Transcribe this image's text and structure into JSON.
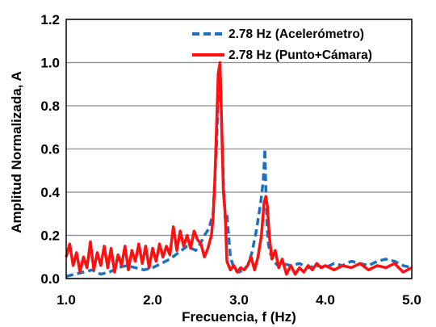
{
  "chart_data": {
    "type": "line",
    "xlabel": "Frecuencia, f (Hz)",
    "ylabel": "Amplitud Normalizada, A",
    "xlim": [
      1.0,
      5.0
    ],
    "ylim": [
      0.0,
      1.2
    ],
    "xticks": [
      "1.0",
      "2.0",
      "3.0",
      "4.0",
      "5.0"
    ],
    "yticks": [
      "0.0",
      "0.2",
      "0.4",
      "0.6",
      "0.8",
      "1.0",
      "1.2"
    ],
    "grid": "horizontal",
    "legend_position": "top-right",
    "series": [
      {
        "name": "2.78 Hz (Acelerómetro)",
        "color": "#1f6fc0",
        "style": "dashed",
        "x": [
          1.0,
          1.1,
          1.2,
          1.3,
          1.4,
          1.5,
          1.6,
          1.7,
          1.8,
          1.9,
          2.0,
          2.1,
          2.2,
          2.3,
          2.4,
          2.5,
          2.55,
          2.6,
          2.65,
          2.7,
          2.72,
          2.74,
          2.76,
          2.78,
          2.8,
          2.82,
          2.84,
          2.86,
          2.88,
          2.9,
          2.95,
          3.0,
          3.05,
          3.1,
          3.15,
          3.2,
          3.25,
          3.28,
          3.3,
          3.31,
          3.32,
          3.33,
          3.34,
          3.36,
          3.38,
          3.4,
          3.45,
          3.5,
          3.6,
          3.7,
          3.8,
          3.9,
          4.0,
          4.1,
          4.2,
          4.3,
          4.4,
          4.5,
          4.6,
          4.7,
          4.8,
          4.9,
          5.0
        ],
        "y": [
          0.01,
          0.02,
          0.03,
          0.04,
          0.02,
          0.03,
          0.05,
          0.06,
          0.05,
          0.04,
          0.05,
          0.07,
          0.09,
          0.12,
          0.15,
          0.13,
          0.16,
          0.2,
          0.23,
          0.3,
          0.45,
          0.62,
          0.85,
          0.98,
          0.7,
          0.45,
          0.28,
          0.3,
          0.2,
          0.1,
          0.04,
          0.03,
          0.04,
          0.06,
          0.12,
          0.22,
          0.35,
          0.45,
          0.6,
          0.42,
          0.3,
          0.22,
          0.16,
          0.12,
          0.1,
          0.08,
          0.06,
          0.07,
          0.06,
          0.07,
          0.05,
          0.06,
          0.05,
          0.07,
          0.06,
          0.08,
          0.07,
          0.06,
          0.08,
          0.09,
          0.08,
          0.06,
          0.05
        ]
      },
      {
        "name": "2.78 Hz (Punto+Cámara)",
        "color": "#ff1010",
        "style": "solid",
        "x": [
          1.0,
          1.04,
          1.08,
          1.12,
          1.16,
          1.2,
          1.24,
          1.28,
          1.32,
          1.36,
          1.4,
          1.44,
          1.48,
          1.52,
          1.56,
          1.6,
          1.64,
          1.68,
          1.72,
          1.76,
          1.8,
          1.84,
          1.88,
          1.92,
          1.96,
          2.0,
          2.04,
          2.08,
          2.12,
          2.16,
          2.2,
          2.24,
          2.28,
          2.32,
          2.36,
          2.4,
          2.44,
          2.48,
          2.52,
          2.56,
          2.6,
          2.64,
          2.68,
          2.7,
          2.72,
          2.74,
          2.76,
          2.78,
          2.8,
          2.82,
          2.84,
          2.86,
          2.9,
          2.94,
          2.98,
          3.02,
          3.06,
          3.1,
          3.14,
          3.18,
          3.22,
          3.26,
          3.29,
          3.31,
          3.33,
          3.35,
          3.38,
          3.42,
          3.46,
          3.5,
          3.55,
          3.6,
          3.65,
          3.7,
          3.75,
          3.8,
          3.85,
          3.9,
          3.95,
          4.0,
          4.1,
          4.2,
          4.3,
          4.4,
          4.5,
          4.6,
          4.7,
          4.8,
          4.9,
          5.0
        ],
        "y": [
          0.1,
          0.16,
          0.06,
          0.12,
          0.03,
          0.1,
          0.05,
          0.17,
          0.04,
          0.12,
          0.06,
          0.15,
          0.05,
          0.14,
          0.03,
          0.11,
          0.06,
          0.15,
          0.04,
          0.13,
          0.08,
          0.16,
          0.07,
          0.15,
          0.05,
          0.14,
          0.08,
          0.16,
          0.1,
          0.15,
          0.11,
          0.24,
          0.13,
          0.22,
          0.15,
          0.2,
          0.14,
          0.22,
          0.18,
          0.16,
          0.1,
          0.14,
          0.2,
          0.28,
          0.45,
          0.7,
          0.95,
          1.0,
          0.7,
          0.4,
          0.3,
          0.08,
          0.04,
          0.06,
          0.03,
          0.05,
          0.04,
          0.06,
          0.1,
          0.04,
          0.1,
          0.2,
          0.35,
          0.38,
          0.33,
          0.2,
          0.09,
          0.13,
          0.05,
          0.09,
          0.02,
          0.06,
          0.02,
          0.05,
          0.03,
          0.06,
          0.04,
          0.07,
          0.05,
          0.06,
          0.04,
          0.06,
          0.05,
          0.07,
          0.04,
          0.06,
          0.05,
          0.07,
          0.03,
          0.05
        ]
      }
    ]
  }
}
